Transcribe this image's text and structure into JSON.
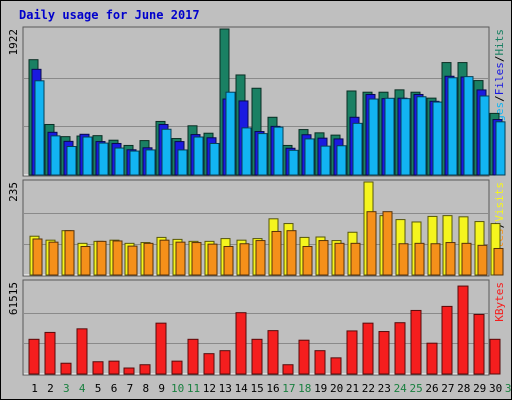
{
  "chart_data": {
    "type": "bar",
    "title": "Daily usage for June 2017",
    "categories": [
      "1",
      "2",
      "3",
      "4",
      "5",
      "6",
      "7",
      "8",
      "9",
      "10",
      "11",
      "12",
      "13",
      "14",
      "15",
      "16",
      "17",
      "18",
      "19",
      "20",
      "21",
      "22",
      "23",
      "24",
      "25",
      "26",
      "27",
      "28",
      "29",
      "30",
      "31"
    ],
    "weekend_days": [
      "3",
      "4",
      "10",
      "11",
      "17",
      "18",
      "24",
      "25",
      "31"
    ],
    "panels": [
      {
        "name": "pages_files_hits",
        "ymax_label": "1922",
        "ylim": [
          0,
          1922
        ],
        "legend": [
          "Pages",
          "Files",
          "Hits"
        ],
        "series": [
          {
            "name": "Hits",
            "color": "#1a8063",
            "values": [
              1518,
              665,
              505,
              513,
              518,
              458,
              389,
              453,
              705,
              480,
              648,
              550,
              1922,
              1317,
              1142,
              760,
              389,
              598,
              555,
              525,
              1106,
              1090,
              1090,
              1121,
              1090,
              1012,
              1480,
              1480,
              1243,
              811,
              0
            ]
          },
          {
            "name": "Files",
            "color": "#1a1ae0",
            "values": [
              1391,
              562,
              443,
              536,
              440,
              415,
              332,
              358,
              665,
              440,
              532,
              490,
              1000,
              975,
              572,
              640,
              352,
              530,
              485,
              475,
              760,
              1060,
              1005,
              1011,
              1060,
              970,
              1300,
              1290,
              1120,
              730,
              0
            ]
          },
          {
            "name": "Pages",
            "color": "#12b4f2",
            "values": [
              1240,
              515,
              375,
              500,
              420,
              355,
              315,
              330,
              602,
              330,
              500,
              415,
              1090,
              620,
              545,
              630,
              325,
              475,
              380,
              385,
              680,
              1000,
              1010,
              1005,
              1030,
              960,
              1280,
              1295,
              1040,
              700,
              0
            ]
          }
        ]
      },
      {
        "name": "visits_sites",
        "ymax_label": "235",
        "ylim": [
          0,
          235
        ],
        "legend": [
          "Sites",
          "Visits"
        ],
        "series": [
          {
            "name": "Visits",
            "color": "#f5f51e",
            "values": [
              98,
              88,
              112,
              80,
              85,
              88,
              80,
              82,
              95,
              90,
              85,
              85,
              92,
              88,
              92,
              142,
              130,
              95,
              96,
              87,
              108,
              235,
              150,
              140,
              134,
              148,
              150,
              147,
              135,
              130,
              0
            ]
          },
          {
            "name": "Sites",
            "color": "#f5901a",
            "values": [
              91,
              83,
              112,
              72,
              85,
              86,
              73,
              80,
              88,
              83,
              82,
              78,
              72,
              79,
              87,
              110,
              112,
              72,
              87,
              80,
              80,
              160,
              160,
              79,
              80,
              79,
              82,
              80,
              75,
              67,
              0
            ]
          }
        ]
      },
      {
        "name": "kbytes",
        "ymax_label": "61515",
        "ylim": [
          0,
          61515
        ],
        "legend": [
          "KBytes"
        ],
        "series": [
          {
            "name": "KBytes",
            "color": "#f51e1e",
            "values": [
              23200,
              27800,
              7200,
              30200,
              8200,
              8600,
              4000,
              6200,
              34000,
              8600,
              23200,
              13600,
              15600,
              41000,
              23200,
              29000,
              6200,
              22600,
              15600,
              10800,
              28800,
              34000,
              28400,
              34300,
              42500,
              20600,
              45200,
              58800,
              39800,
              23200,
              0
            ]
          }
        ]
      }
    ]
  }
}
